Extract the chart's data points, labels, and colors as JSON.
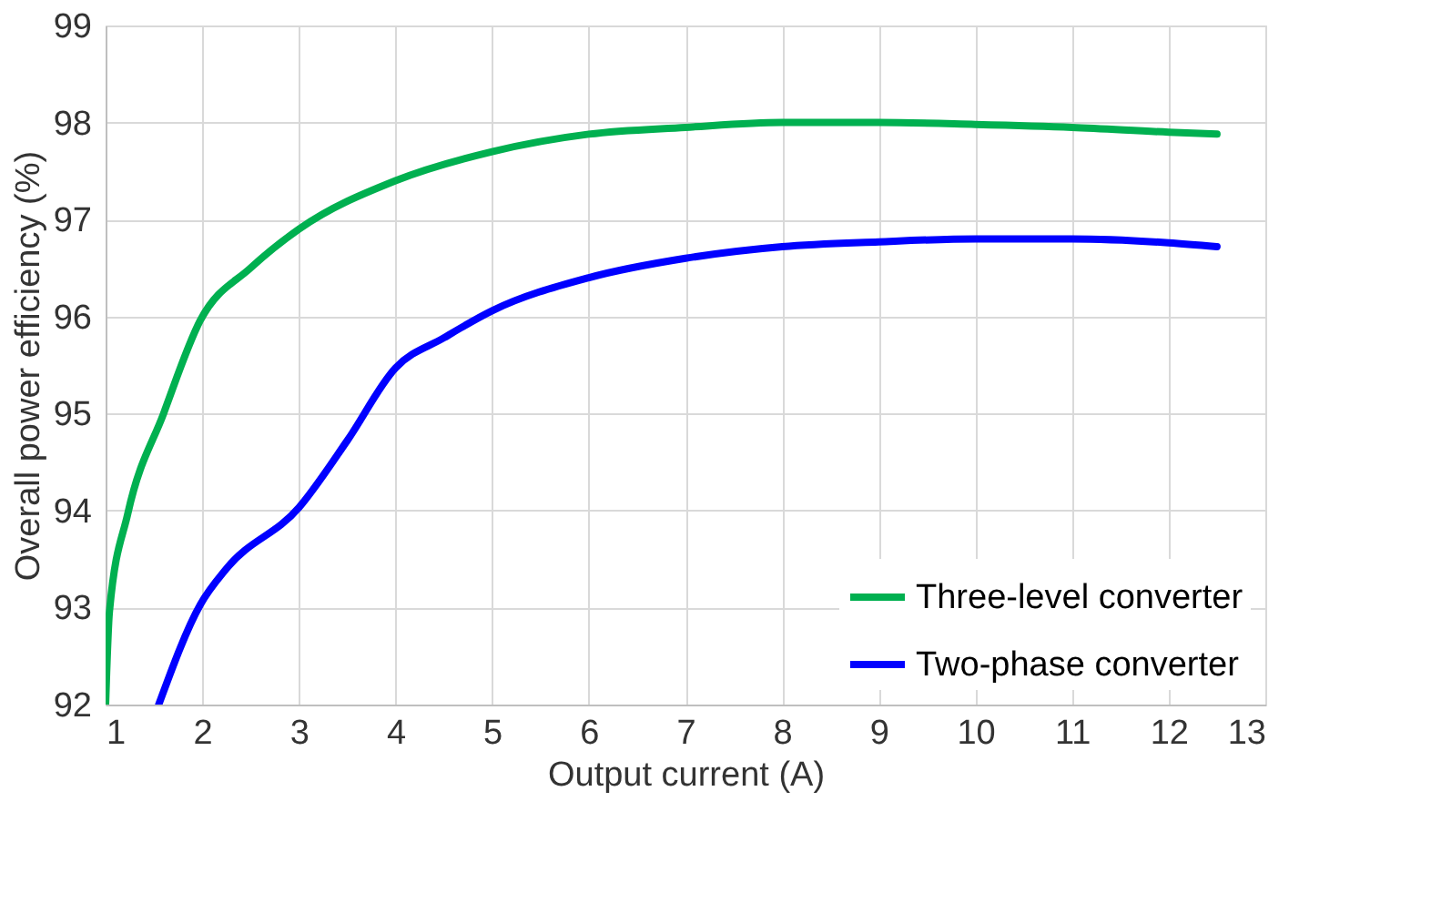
{
  "chart_data": {
    "type": "line",
    "xlabel": "Output current (A)",
    "ylabel": "Overall power efficiency (%)",
    "xlim": [
      1,
      13
    ],
    "xticks": [
      1,
      2,
      3,
      4,
      5,
      6,
      7,
      8,
      9,
      10,
      11,
      12,
      13
    ],
    "ylim": [
      92,
      99
    ],
    "yticks": [
      92,
      93,
      94,
      95,
      96,
      97,
      98,
      99
    ],
    "grid": true,
    "legend": "bottom right",
    "line_style": "solid",
    "marker": "none",
    "series": [
      {
        "name": "Three-level converter",
        "color": "#00b050",
        "x": [
          1,
          1.04,
          1.23,
          1.6,
          1.98,
          2.5,
          3,
          4,
          5,
          6,
          7,
          8,
          9,
          10,
          11,
          12,
          12.5
        ],
        "values": [
          92,
          92.96,
          93.97,
          95.0,
          95.96,
          96.5,
          96.9,
          97.4,
          97.7,
          97.88,
          97.95,
          98.0,
          98.0,
          97.98,
          97.95,
          97.9,
          97.88
        ]
      },
      {
        "name": "Two-phase converter",
        "color": "#0000ff",
        "x": [
          1.55,
          1.98,
          2.25,
          3,
          3.5,
          4,
          4.5,
          5,
          6,
          7,
          8,
          9,
          10,
          11,
          12,
          12.5
        ],
        "values": [
          92,
          93.03,
          93.4,
          94.03,
          94.72,
          95.47,
          95.78,
          96.06,
          96.4,
          96.6,
          96.72,
          96.77,
          96.8,
          96.8,
          96.76,
          96.72
        ]
      }
    ]
  }
}
